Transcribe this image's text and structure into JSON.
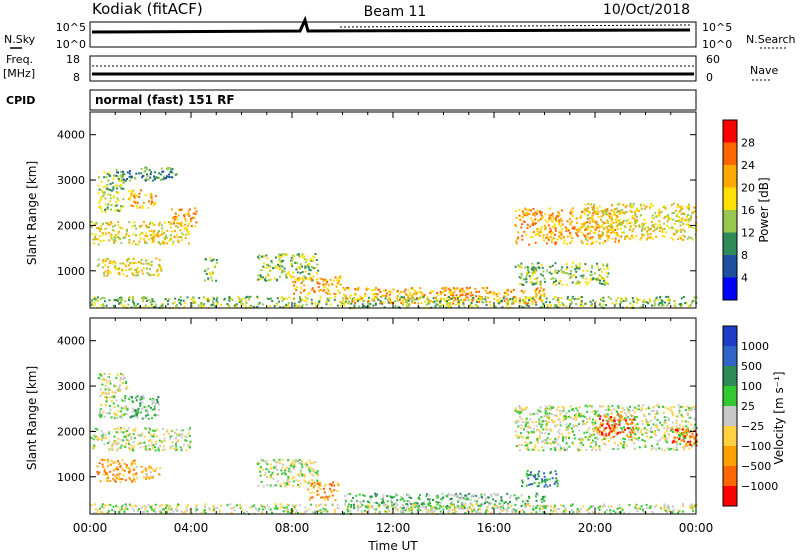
{
  "header": {
    "station": "Kodiak (fitACF)",
    "beam": "Beam 11",
    "date": "10/Oct/2018"
  },
  "status_panel": {
    "nsky_label": "N.Sky",
    "nsky_ticks": [
      "10^5",
      "10^0"
    ],
    "nsearch_label": "N.Search",
    "nsearch_ticks": [
      "10^5",
      "10^0"
    ],
    "freq_label_top": "Freq.",
    "freq_label_bottom": "[MHz]",
    "freq_ticks": [
      "18",
      "8"
    ],
    "nave_label": "Nave",
    "nave_ticks": [
      "60",
      "0"
    ],
    "cpid_label": "CPID",
    "mode_text": "normal (fast) 151 RF"
  },
  "chart_data": [
    {
      "type": "heatmap",
      "name": "power",
      "ylabel": "Slant Range [km]",
      "y_ticks": [
        1000,
        2000,
        3000,
        4000
      ],
      "ylim": [
        180,
        4500
      ],
      "xlim": [
        0,
        24
      ],
      "colorbar": {
        "label": "Power [dB]",
        "ticks": [
          "28",
          "24",
          "20",
          "16",
          "12",
          "8",
          "4"
        ],
        "colors": [
          "#ff0000",
          "#ff6600",
          "#ffaa00",
          "#ffe000",
          "#96c850",
          "#2e8b57",
          "#1e50a0",
          "#0000ff"
        ]
      },
      "regions": [
        {
          "t": [
            0.0,
            3.9
          ],
          "r": [
            1600,
            2100
          ],
          "level": 4
        },
        {
          "t": [
            0.3,
            1.3
          ],
          "r": [
            2300,
            3200
          ],
          "level": 3
        },
        {
          "t": [
            1.5,
            2.6
          ],
          "r": [
            2400,
            2800
          ],
          "level": 5
        },
        {
          "t": [
            1.0,
            3.5
          ],
          "r": [
            3000,
            3300
          ],
          "level": 2
        },
        {
          "t": [
            0.2,
            2.8
          ],
          "r": [
            900,
            1300
          ],
          "level": 4
        },
        {
          "t": [
            3.2,
            4.2
          ],
          "r": [
            2000,
            2400
          ],
          "level": 5
        },
        {
          "t": [
            4.5,
            5.0
          ],
          "r": [
            800,
            1300
          ],
          "level": 3
        },
        {
          "t": [
            6.6,
            9.0
          ],
          "r": [
            800,
            1400
          ],
          "level": 3
        },
        {
          "t": [
            8.0,
            10.0
          ],
          "r": [
            500,
            900
          ],
          "level": 5
        },
        {
          "t": [
            10.0,
            18.0
          ],
          "r": [
            300,
            650
          ],
          "level": 5
        },
        {
          "t": [
            16.8,
            21.0
          ],
          "r": [
            1600,
            2400
          ],
          "level": 5
        },
        {
          "t": [
            19.5,
            24.0
          ],
          "r": [
            1700,
            2500
          ],
          "level": 4
        },
        {
          "t": [
            16.8,
            20.5
          ],
          "r": [
            700,
            1200
          ],
          "level": 3
        },
        {
          "t": [
            0.0,
            24.0
          ],
          "r": [
            200,
            450
          ],
          "level": 3
        }
      ]
    },
    {
      "type": "heatmap",
      "name": "velocity",
      "xlabel": "Time UT",
      "ylabel": "Slant Range [km]",
      "x_ticks": [
        "00:00",
        "04:00",
        "08:00",
        "12:00",
        "16:00",
        "20:00",
        "00:00"
      ],
      "y_ticks": [
        1000,
        2000,
        3000,
        4000
      ],
      "ylim": [
        180,
        4500
      ],
      "xlim": [
        0,
        24
      ],
      "colorbar": {
        "label": "Velocity [m s⁻¹]",
        "ticks": [
          "1000",
          "500",
          "100",
          "25",
          "−25",
          "−100",
          "−500",
          "−1000"
        ],
        "colors": [
          "#1e3cc8",
          "#3264c8",
          "#2e8b57",
          "#32c832",
          "#c8c8c8",
          "#ffd040",
          "#ffa000",
          "#ff6600",
          "#ff0000"
        ]
      },
      "regions": [
        {
          "t": [
            0.0,
            4.0
          ],
          "r": [
            1600,
            2100
          ],
          "v": 4
        },
        {
          "t": [
            0.3,
            1.5
          ],
          "r": [
            2300,
            3300
          ],
          "v": 4
        },
        {
          "t": [
            1.5,
            2.7
          ],
          "r": [
            2300,
            2800
          ],
          "v": 3
        },
        {
          "t": [
            0.2,
            1.8
          ],
          "r": [
            900,
            1400
          ],
          "v": 6
        },
        {
          "t": [
            1.8,
            2.8
          ],
          "r": [
            950,
            1250
          ],
          "v": 5
        },
        {
          "t": [
            6.6,
            9.0
          ],
          "r": [
            800,
            1400
          ],
          "v": 4
        },
        {
          "t": [
            8.6,
            9.8
          ],
          "r": [
            500,
            900
          ],
          "v": 6
        },
        {
          "t": [
            10.0,
            18.0
          ],
          "r": [
            300,
            650
          ],
          "v": 3
        },
        {
          "t": [
            17.0,
            18.5
          ],
          "r": [
            800,
            1150
          ],
          "v": 2
        },
        {
          "t": [
            16.8,
            24.0
          ],
          "r": [
            1600,
            2600
          ],
          "v": 4
        },
        {
          "t": [
            20.0,
            21.5
          ],
          "r": [
            1900,
            2400
          ],
          "v": 7
        },
        {
          "t": [
            23.0,
            24.0
          ],
          "r": [
            1700,
            2100
          ],
          "v": 7
        },
        {
          "t": [
            0.0,
            24.0
          ],
          "r": [
            200,
            420
          ],
          "v": 4
        }
      ]
    }
  ]
}
